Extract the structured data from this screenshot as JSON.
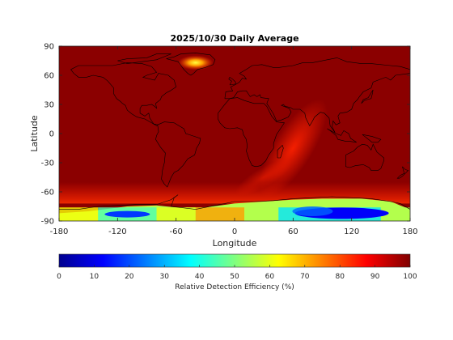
{
  "chart_data": {
    "type": "heatmap",
    "title": "2025/10/30 Daily Average",
    "xlabel": "Longitude",
    "ylabel": "Latitude",
    "xlim": [
      -180,
      180
    ],
    "ylim": [
      -90,
      90
    ],
    "xticks": [
      -180,
      -120,
      -60,
      0,
      60,
      120,
      180
    ],
    "yticks": [
      90,
      60,
      30,
      0,
      -30,
      -60,
      -90
    ],
    "grid": false,
    "colorbar": {
      "label": "Relative Detection Efficiency (%)",
      "colormap": "jet",
      "range": [
        0,
        100
      ],
      "ticks": [
        0,
        10,
        20,
        30,
        40,
        50,
        60,
        70,
        80,
        90,
        100
      ],
      "placement": "bottom"
    },
    "overlay": "continental coastlines",
    "field_summary": {
      "background_value": 98,
      "features": [
        {
          "region": "Greenland interior",
          "lat": 72,
          "lon": -40,
          "value": 75
        },
        {
          "region": "Indian Ocean / Southern band",
          "lat": -20,
          "lon": 70,
          "value": 88
        },
        {
          "region": "Southern Ocean near Antarctica",
          "lat": -62,
          "lon": 60,
          "value": 80
        },
        {
          "region": "West Antarctica",
          "lat": -82,
          "lon": -110,
          "value": 25
        },
        {
          "region": "East Antarctica plateau",
          "lat": -83,
          "lon": 115,
          "value": 12
        },
        {
          "region": "Antarctic coast",
          "lat": -74,
          "lon": 0,
          "value": 55
        }
      ]
    }
  }
}
